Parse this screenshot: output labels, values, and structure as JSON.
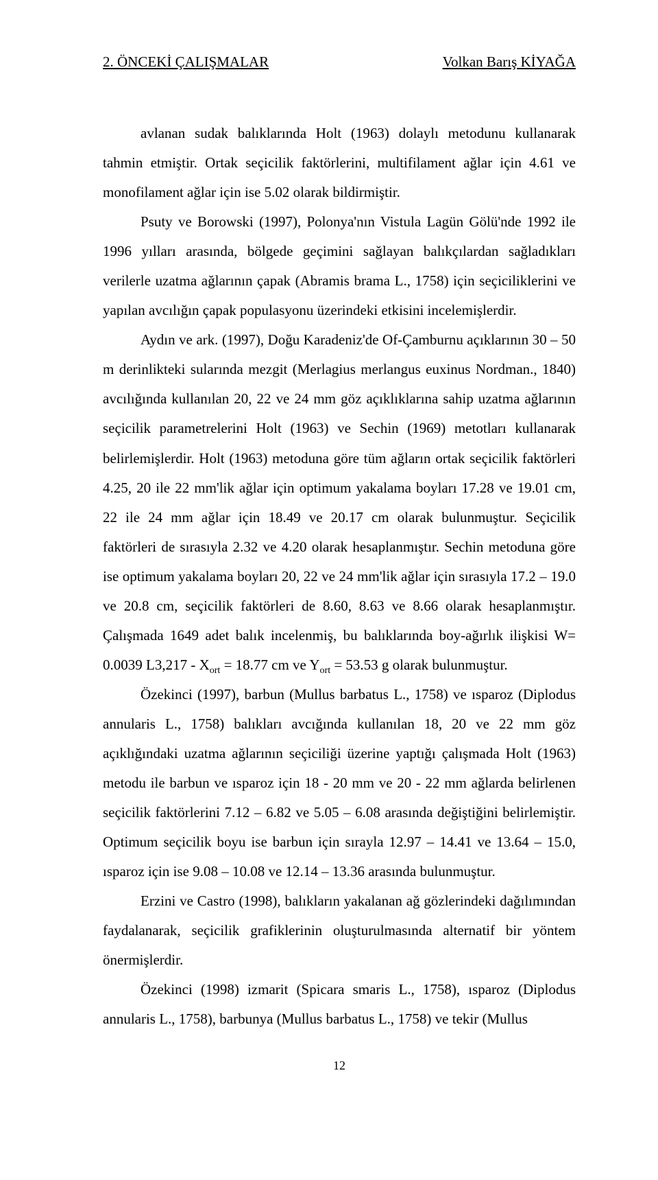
{
  "header": {
    "left": "2. ÖNCEKİ ÇALIŞMALAR",
    "right": "Volkan Barış KİYAĞA"
  },
  "paragraphs": {
    "p1": "avlanan sudak balıklarında Holt (1963) dolaylı metodunu kullanarak tahmin etmiştir. Ortak seçicilik faktörlerini, multifilament ağlar için 4.61 ve monofilament ağlar için ise 5.02 olarak bildirmiştir.",
    "p2": "Psuty ve Borowski (1997), Polonya'nın Vistula Lagün Gölü'nde 1992 ile 1996 yılları arasında, bölgede geçimini sağlayan balıkçılardan sağladıkları verilerle uzatma ağlarının çapak (Abramis brama L., 1758) için seçiciliklerini ve yapılan avcılığın çapak populasyonu üzerindeki etkisini incelemişlerdir.",
    "p3_a": "Aydın ve ark. (1997), Doğu Karadeniz'de Of-Çamburnu açıklarının 30 – 50 m derinlikteki sularında mezgit (Merlagius merlangus euxinus Nordman., 1840) avcılığında kullanılan 20, 22 ve 24 mm göz açıklıklarına sahip uzatma ağlarının seçicilik parametrelerini Holt (1963) ve Sechin (1969) metotları kullanarak belirlemişlerdir. Holt (1963) metoduna göre tüm ağların ortak seçicilik faktörleri 4.25, 20 ile 22 mm'lik ağlar için optimum yakalama boyları 17.28 ve 19.01 cm, 22 ile 24 mm ağlar için 18.49 ve 20.17 cm olarak bulunmuştur. Seçicilik faktörleri de sırasıyla 2.32 ve 4.20 olarak hesaplanmıştır. Sechin metoduna göre ise optimum yakalama boyları 20, 22 ve 24 mm'lik ağlar için sırasıyla 17.2 – 19.0 ve 20.8 cm, seçicilik faktörleri de 8.60, 8.63 ve 8.66 olarak hesaplanmıştır. Çalışmada 1649 adet balık incelenmiş, bu balıklarında boy-ağırlık ilişkisi W= 0.0039 L3,217 - X",
    "p3_sub1": "ort",
    "p3_b": " = 18.77 cm ve Y",
    "p3_sub2": "ort",
    "p3_c": " = 53.53 g olarak bulunmuştur.",
    "p4": "Özekinci (1997), barbun (Mullus barbatus L., 1758) ve ısparoz (Diplodus annularis L., 1758) balıkları avcığında kullanılan 18, 20 ve 22 mm göz açıklığındaki uzatma ağlarının seçiciliği üzerine yaptığı çalışmada Holt (1963) metodu ile barbun ve ısparoz için 18 - 20 mm ve 20 - 22 mm ağlarda belirlenen seçicilik faktörlerini 7.12 – 6.82 ve 5.05 – 6.08 arasında değiştiğini belirlemiştir. Optimum seçicilik boyu ise barbun için sırayla 12.97 – 14.41 ve 13.64 – 15.0, ısparoz için ise 9.08 – 10.08 ve 12.14 – 13.36 arasında bulunmuştur.",
    "p5": "Erzini ve Castro (1998), balıkların yakalanan ağ gözlerindeki dağılımından faydalanarak, seçicilik grafiklerinin oluşturulmasında alternatif bir yöntem önermişlerdir.",
    "p6": "Özekinci (1998) izmarit (Spicara smaris L., 1758), ısparoz (Diplodus annularis L., 1758), barbunya (Mullus barbatus L., 1758) ve tekir (Mullus"
  },
  "pageNumber": "12"
}
